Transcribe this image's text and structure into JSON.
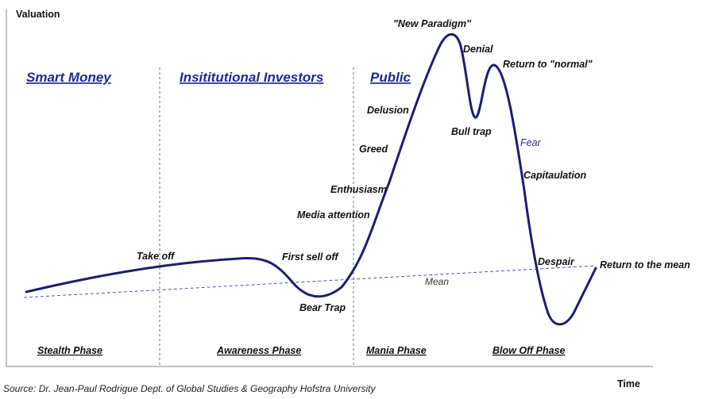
{
  "axes": {
    "y_label": "Valuation",
    "x_label": "Time"
  },
  "investor_groups": [
    {
      "label": "Smart Money"
    },
    {
      "label": "Insititutional Investors"
    },
    {
      "label": "Public"
    }
  ],
  "phases": [
    {
      "label": "Stealth Phase"
    },
    {
      "label": "Awareness Phase"
    },
    {
      "label": "Mania Phase"
    },
    {
      "label": "Blow Off Phase"
    }
  ],
  "curve_labels": [
    {
      "label": "Take off"
    },
    {
      "label": "First sell off"
    },
    {
      "label": "Bear Trap"
    },
    {
      "label": "Media attention"
    },
    {
      "label": "Enthusiasm"
    },
    {
      "label": "Greed"
    },
    {
      "label": "Delusion"
    },
    {
      "label": "\"New Paradigm\""
    },
    {
      "label": "Denial"
    },
    {
      "label": "Bull trap"
    },
    {
      "label": "Return to \"normal\""
    },
    {
      "label": "Fear"
    },
    {
      "label": "Capitaulation"
    },
    {
      "label": "Despair"
    },
    {
      "label": "Return to the mean"
    }
  ],
  "mean_label": "Mean",
  "source": "Source: Dr. Jean-Paul Rodrigue Dept. of Global Studies & Geography Hofstra University",
  "colors": {
    "curve": "#1b1f6b",
    "group_text": "#1f2a8c",
    "fear_text": "#2a3190",
    "mean_line": "#4a56b8",
    "axis": "#9a9a9a"
  }
}
